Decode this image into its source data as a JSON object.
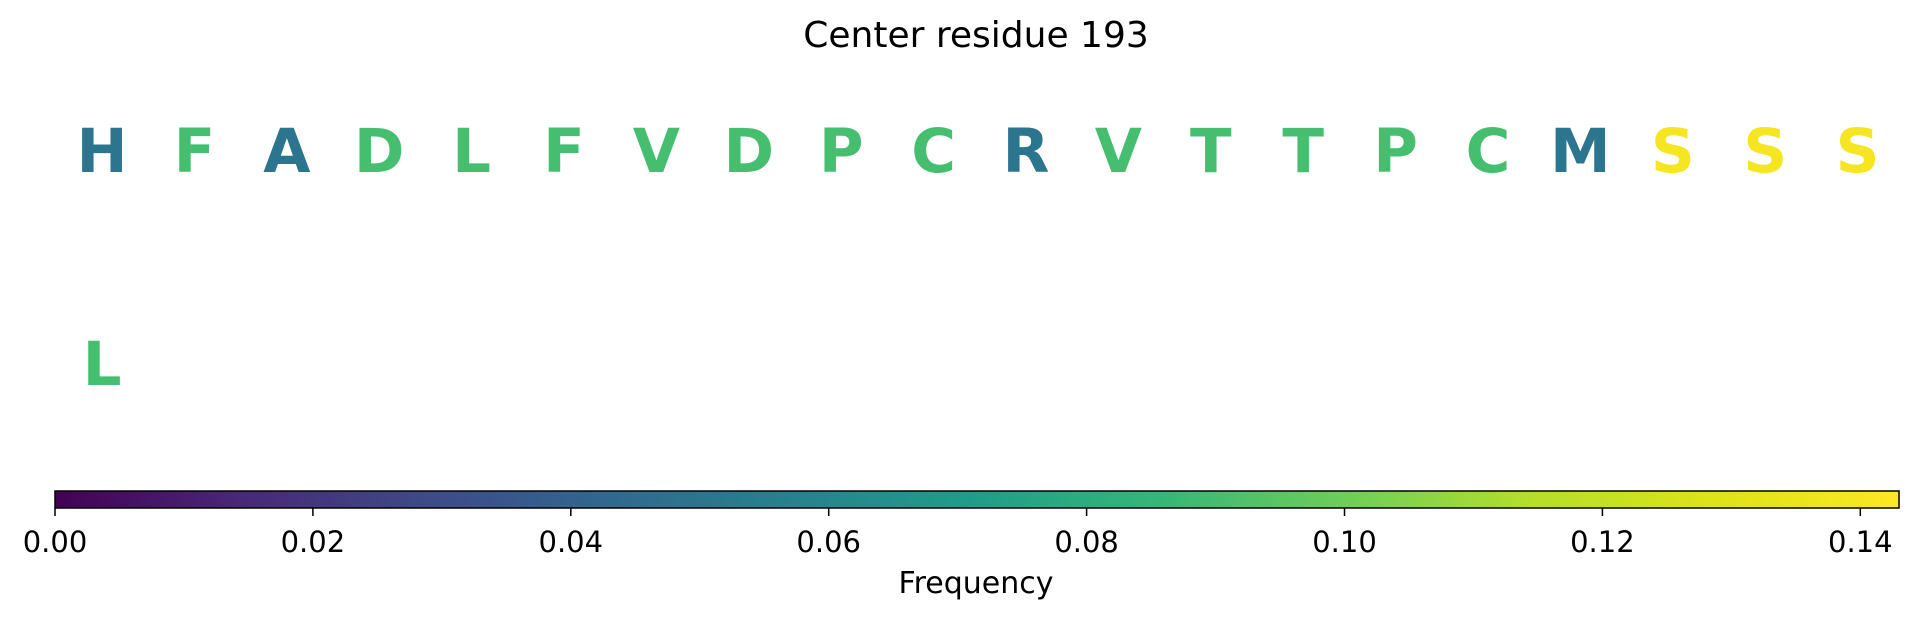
{
  "chart_data": {
    "type": "sequence-logo-colorbar",
    "title": "Center residue 193",
    "rows": [
      {
        "residues": [
          {
            "letter": "H",
            "frequency": 0.05
          },
          {
            "letter": "F",
            "frequency": 0.09
          },
          {
            "letter": "A",
            "frequency": 0.05
          },
          {
            "letter": "D",
            "frequency": 0.09
          },
          {
            "letter": "L",
            "frequency": 0.09
          },
          {
            "letter": "F",
            "frequency": 0.09
          },
          {
            "letter": "V",
            "frequency": 0.09
          },
          {
            "letter": "D",
            "frequency": 0.09
          },
          {
            "letter": "P",
            "frequency": 0.09
          },
          {
            "letter": "C",
            "frequency": 0.09
          },
          {
            "letter": "R",
            "frequency": 0.05
          },
          {
            "letter": "V",
            "frequency": 0.09
          },
          {
            "letter": "T",
            "frequency": 0.09
          },
          {
            "letter": "T",
            "frequency": 0.09
          },
          {
            "letter": "P",
            "frequency": 0.09
          },
          {
            "letter": "C",
            "frequency": 0.09
          },
          {
            "letter": "M",
            "frequency": 0.05
          },
          {
            "letter": "S",
            "frequency": 0.14
          },
          {
            "letter": "S",
            "frequency": 0.14
          },
          {
            "letter": "S",
            "frequency": 0.14
          }
        ]
      },
      {
        "residues": [
          {
            "letter": "L",
            "frequency": 0.09
          }
        ]
      }
    ],
    "colorbar": {
      "colormap": "viridis",
      "range": [
        0.0,
        0.143
      ],
      "ticks": [
        0.0,
        0.02,
        0.04,
        0.06,
        0.08,
        0.1,
        0.12,
        0.14
      ],
      "tick_labels": [
        "0.00",
        "0.02",
        "0.04",
        "0.06",
        "0.08",
        "0.10",
        "0.12",
        "0.14"
      ],
      "label": "Frequency"
    }
  }
}
